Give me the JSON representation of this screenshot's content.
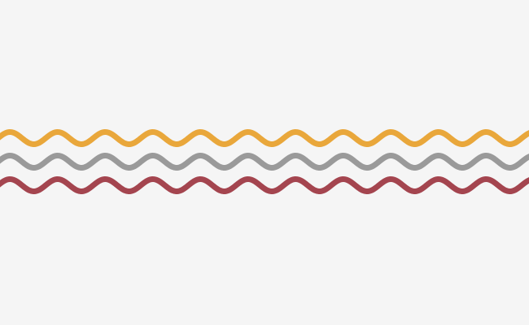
{
  "background_color": "#f5f5f5",
  "waves": [
    {
      "id": "orange",
      "color": "#e9a73b"
    },
    {
      "id": "gray",
      "color": "#9a9a9a"
    },
    {
      "id": "red",
      "color": "#a4454f"
    }
  ]
}
